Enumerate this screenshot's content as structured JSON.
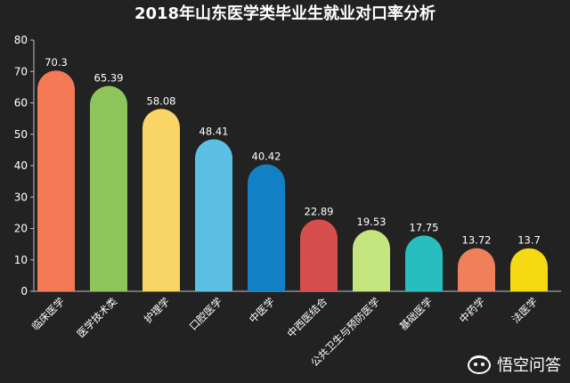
{
  "chart_data": {
    "type": "bar",
    "title": "2018年山东医学类毕业生就业对口率分析",
    "categories": [
      "临床医学",
      "医学技术类",
      "护理学",
      "口腔医学",
      "中医学",
      "中西医结合",
      "公共卫生与预防医学",
      "基础医学",
      "中药学",
      "法医学"
    ],
    "values": [
      70.3,
      65.39,
      58.08,
      48.41,
      40.42,
      22.89,
      19.53,
      17.75,
      13.72,
      13.7
    ],
    "value_labels": [
      "70.3",
      "65.39",
      "58.08",
      "48.41",
      "40.42",
      "22.89",
      "19.53",
      "17.75",
      "13.72",
      "13.7"
    ],
    "colors": [
      "#F47A56",
      "#8DC55A",
      "#F9D566",
      "#5BC0E3",
      "#1280C4",
      "#D74E4E",
      "#C5E57E",
      "#28BDBE",
      "#F08059",
      "#F5DA13"
    ],
    "ylim": [
      0,
      80
    ],
    "yticks": [
      "0",
      "10",
      "20",
      "30",
      "40",
      "50",
      "60",
      "70",
      "80"
    ],
    "xlabel": "",
    "ylabel": "",
    "grid": false,
    "legend": "none"
  },
  "watermark": {
    "text": "悟空问答",
    "icon": "wukong-logo-icon"
  }
}
